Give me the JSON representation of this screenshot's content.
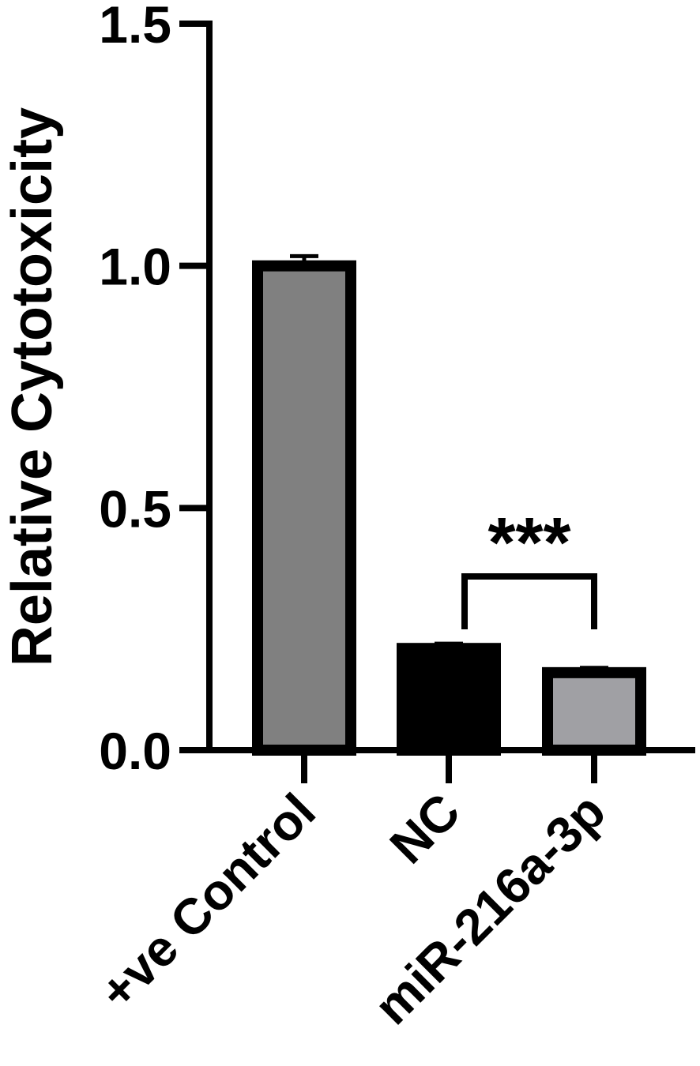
{
  "chart_data": {
    "type": "bar",
    "title": "",
    "xlabel": "",
    "ylabel": "Relative Cytotoxicity",
    "ylim": [
      0,
      1.5
    ],
    "yticks": [
      0.0,
      0.5,
      1.0,
      1.5
    ],
    "ytick_labels": [
      "0.0",
      "0.5",
      "1.0",
      "1.5"
    ],
    "categories": [
      "+ve Control",
      "NC",
      "miR-216a-3p"
    ],
    "values": [
      1.0,
      0.21,
      0.16
    ],
    "errors": [
      0.02,
      0.01,
      0.01
    ],
    "colors": [
      "#808080",
      "#000000",
      "#a0a0a4"
    ],
    "grid": false,
    "significance": {
      "from": "NC",
      "to": "miR-216a-3p",
      "label": "***"
    }
  }
}
